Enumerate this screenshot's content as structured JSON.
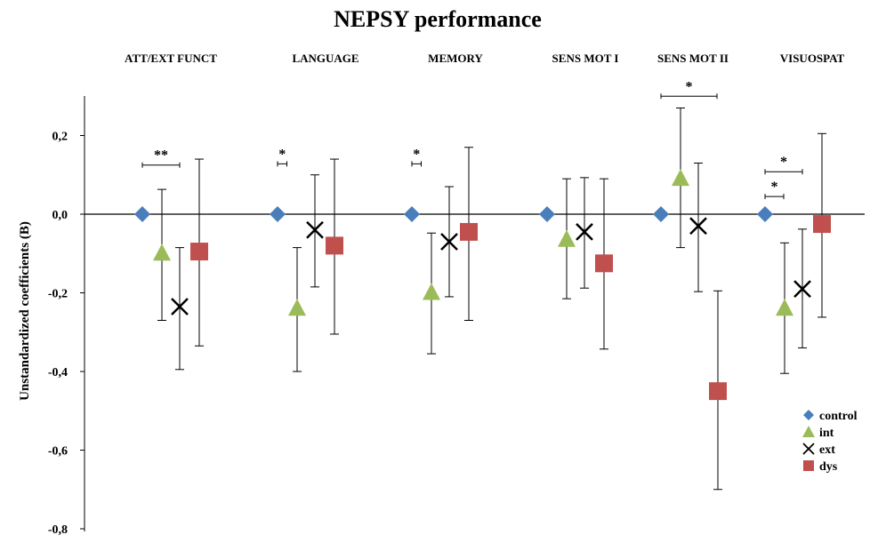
{
  "chart_data": {
    "type": "scatter",
    "title": "NEPSY performance",
    "ylabel": "Unstandardized  coefficients  (B)",
    "ylim": [
      -0.8,
      0.3
    ],
    "yticks": [
      "0,2",
      "0,0",
      "-0,2",
      "-0,4",
      "-0,6",
      "-0,8"
    ],
    "ytick_values": [
      0.2,
      0.0,
      -0.2,
      -0.4,
      -0.6,
      -0.8
    ],
    "categories": [
      "ATT/EXT FUNCT",
      "LANGUAGE",
      "MEMORY",
      "SENS MOT I",
      "SENS MOT II",
      "VISUOSPAT"
    ],
    "legend_position": "bottom-right",
    "series": [
      {
        "name": "control",
        "marker": "diamond",
        "color": "#4a7ebb",
        "values": [
          0,
          0,
          0,
          0,
          0,
          0
        ],
        "lower": [
          null,
          null,
          null,
          null,
          null,
          null
        ],
        "upper": [
          null,
          null,
          null,
          null,
          null,
          null
        ]
      },
      {
        "name": "int",
        "marker": "triangle",
        "color": "#9bbb59",
        "values": [
          -0.1,
          -0.24,
          -0.2,
          -0.065,
          0.09,
          -0.24
        ],
        "lower": [
          -0.27,
          -0.4,
          -0.355,
          -0.215,
          -0.085,
          -0.405
        ],
        "upper": [
          0.063,
          -0.085,
          -0.048,
          0.09,
          0.27,
          -0.073
        ]
      },
      {
        "name": "ext",
        "marker": "x",
        "color": "#000000",
        "values": [
          -0.235,
          -0.04,
          -0.07,
          -0.045,
          -0.03,
          -0.19
        ],
        "lower": [
          -0.395,
          -0.185,
          -0.21,
          -0.188,
          -0.197,
          -0.34
        ],
        "upper": [
          -0.085,
          0.1,
          0.07,
          0.093,
          0.13,
          -0.038
        ]
      },
      {
        "name": "dys",
        "marker": "square",
        "color": "#c0504d",
        "values": [
          -0.095,
          -0.08,
          -0.045,
          -0.125,
          -0.45,
          -0.025
        ],
        "lower": [
          -0.335,
          -0.305,
          -0.27,
          -0.343,
          -0.7,
          -0.262
        ],
        "upper": [
          0.14,
          0.14,
          0.17,
          0.09,
          -0.195,
          0.205
        ]
      }
    ],
    "significance": [
      {
        "group": 0,
        "from": 0,
        "to": 2,
        "y": 0.125,
        "label": "**"
      },
      {
        "group": 1,
        "from": 0,
        "to": 0.5,
        "y": 0.128,
        "label": "*"
      },
      {
        "group": 2,
        "from": 0,
        "to": 0.5,
        "y": 0.128,
        "label": "*"
      },
      {
        "group": 4,
        "from": 0,
        "to": 3,
        "y": 0.3,
        "label": "*"
      },
      {
        "group": 5,
        "from": 0,
        "to": 2,
        "y": 0.108,
        "label": "*"
      },
      {
        "group": 5,
        "from": 0,
        "to": 1,
        "y": 0.045,
        "label": "*"
      }
    ]
  }
}
